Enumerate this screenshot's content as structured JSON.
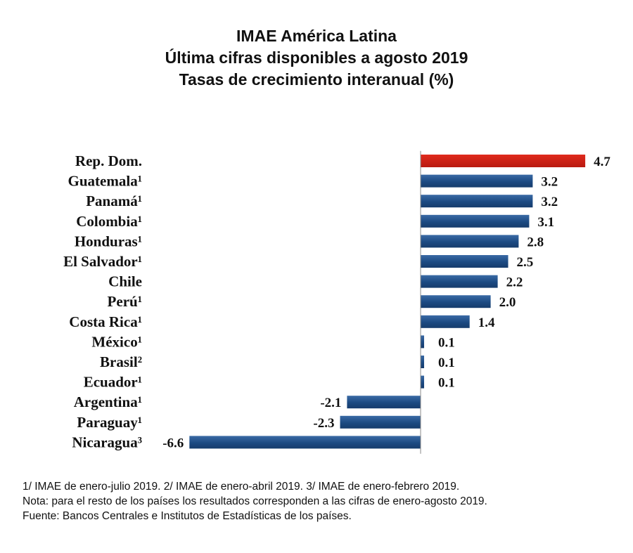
{
  "title": {
    "line1": "IMAE América Latina",
    "line2": "Última cifras disponibles a agosto 2019",
    "line3": "Tasas de crecimiento interanual (%)"
  },
  "chart_data": {
    "type": "bar",
    "orientation": "horizontal",
    "title": "IMAE América Latina",
    "subtitle": "Última cifras disponibles a agosto 2019 — Tasas de crecimiento interanual (%)",
    "xlabel": "",
    "ylabel": "",
    "xlim": [
      -6.6,
      4.7
    ],
    "grid": false,
    "legend": "none",
    "categories": [
      "Rep. Dom.",
      "Guatemala¹",
      "Panamá¹",
      "Colombia¹",
      "Honduras¹",
      "El Salvador¹",
      "Chile",
      "Perú¹",
      "Costa Rica¹",
      "México¹",
      "Brasil²",
      "Ecuador¹",
      "Argentina¹",
      "Paraguay¹",
      "Nicaragua³"
    ],
    "values": [
      4.7,
      3.2,
      3.2,
      3.1,
      2.8,
      2.5,
      2.2,
      2.0,
      1.4,
      0.1,
      0.1,
      0.1,
      -2.1,
      -2.3,
      -6.6
    ],
    "value_labels": [
      "4.7",
      "3.2",
      "3.2",
      "3.1",
      "2.8",
      "2.5",
      "2.2",
      "2.0",
      "1.4",
      "0.1",
      "0.1",
      "0.1",
      "-2.1",
      "-2.3",
      "-6.6"
    ],
    "highlight_category": "Rep. Dom.",
    "colors": {
      "highlight": "#cc1f14",
      "bar": "#1c4a82",
      "bar_light": "#3a6aa5",
      "axis": "#888888"
    }
  },
  "footnotes": {
    "line1": "1/ IMAE de enero-julio 2019. 2/ IMAE de enero-abril 2019. 3/ IMAE de enero-febrero 2019.",
    "line2": "Nota: para el resto de los países los resultados corresponden a las cifras de enero-agosto 2019.",
    "line3": "Fuente: Bancos Centrales e Institutos de Estadísticas de los países."
  }
}
